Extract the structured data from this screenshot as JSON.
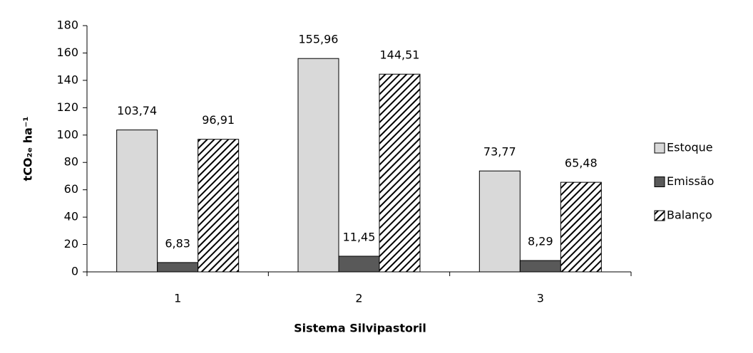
{
  "chart_data": {
    "type": "bar",
    "y_label": "tCO₂ₑ ha⁻¹",
    "x_label": "Sistema Silvipastoril",
    "categories": [
      "1",
      "2",
      "3"
    ],
    "series": [
      {
        "name": "Estoque",
        "color": "#d9d9d9",
        "values": [
          103.74,
          155.96,
          73.77
        ],
        "value_labels": [
          "103,74",
          "155,96",
          "73,77"
        ]
      },
      {
        "name": "Emissão",
        "color": "#595959",
        "values": [
          6.83,
          11.45,
          8.29
        ],
        "value_labels": [
          "6,83",
          "11,45",
          "8,29"
        ]
      },
      {
        "name": "Balanço",
        "color": "#000000",
        "hatch": true,
        "values": [
          96.91,
          144.51,
          65.48
        ],
        "value_labels": [
          "96,91",
          "144,51",
          "65,48"
        ]
      }
    ],
    "ylim": [
      0,
      180
    ],
    "yticks": [
      0,
      20,
      40,
      60,
      80,
      100,
      120,
      140,
      160,
      180
    ],
    "grid": false,
    "legend": "right"
  }
}
